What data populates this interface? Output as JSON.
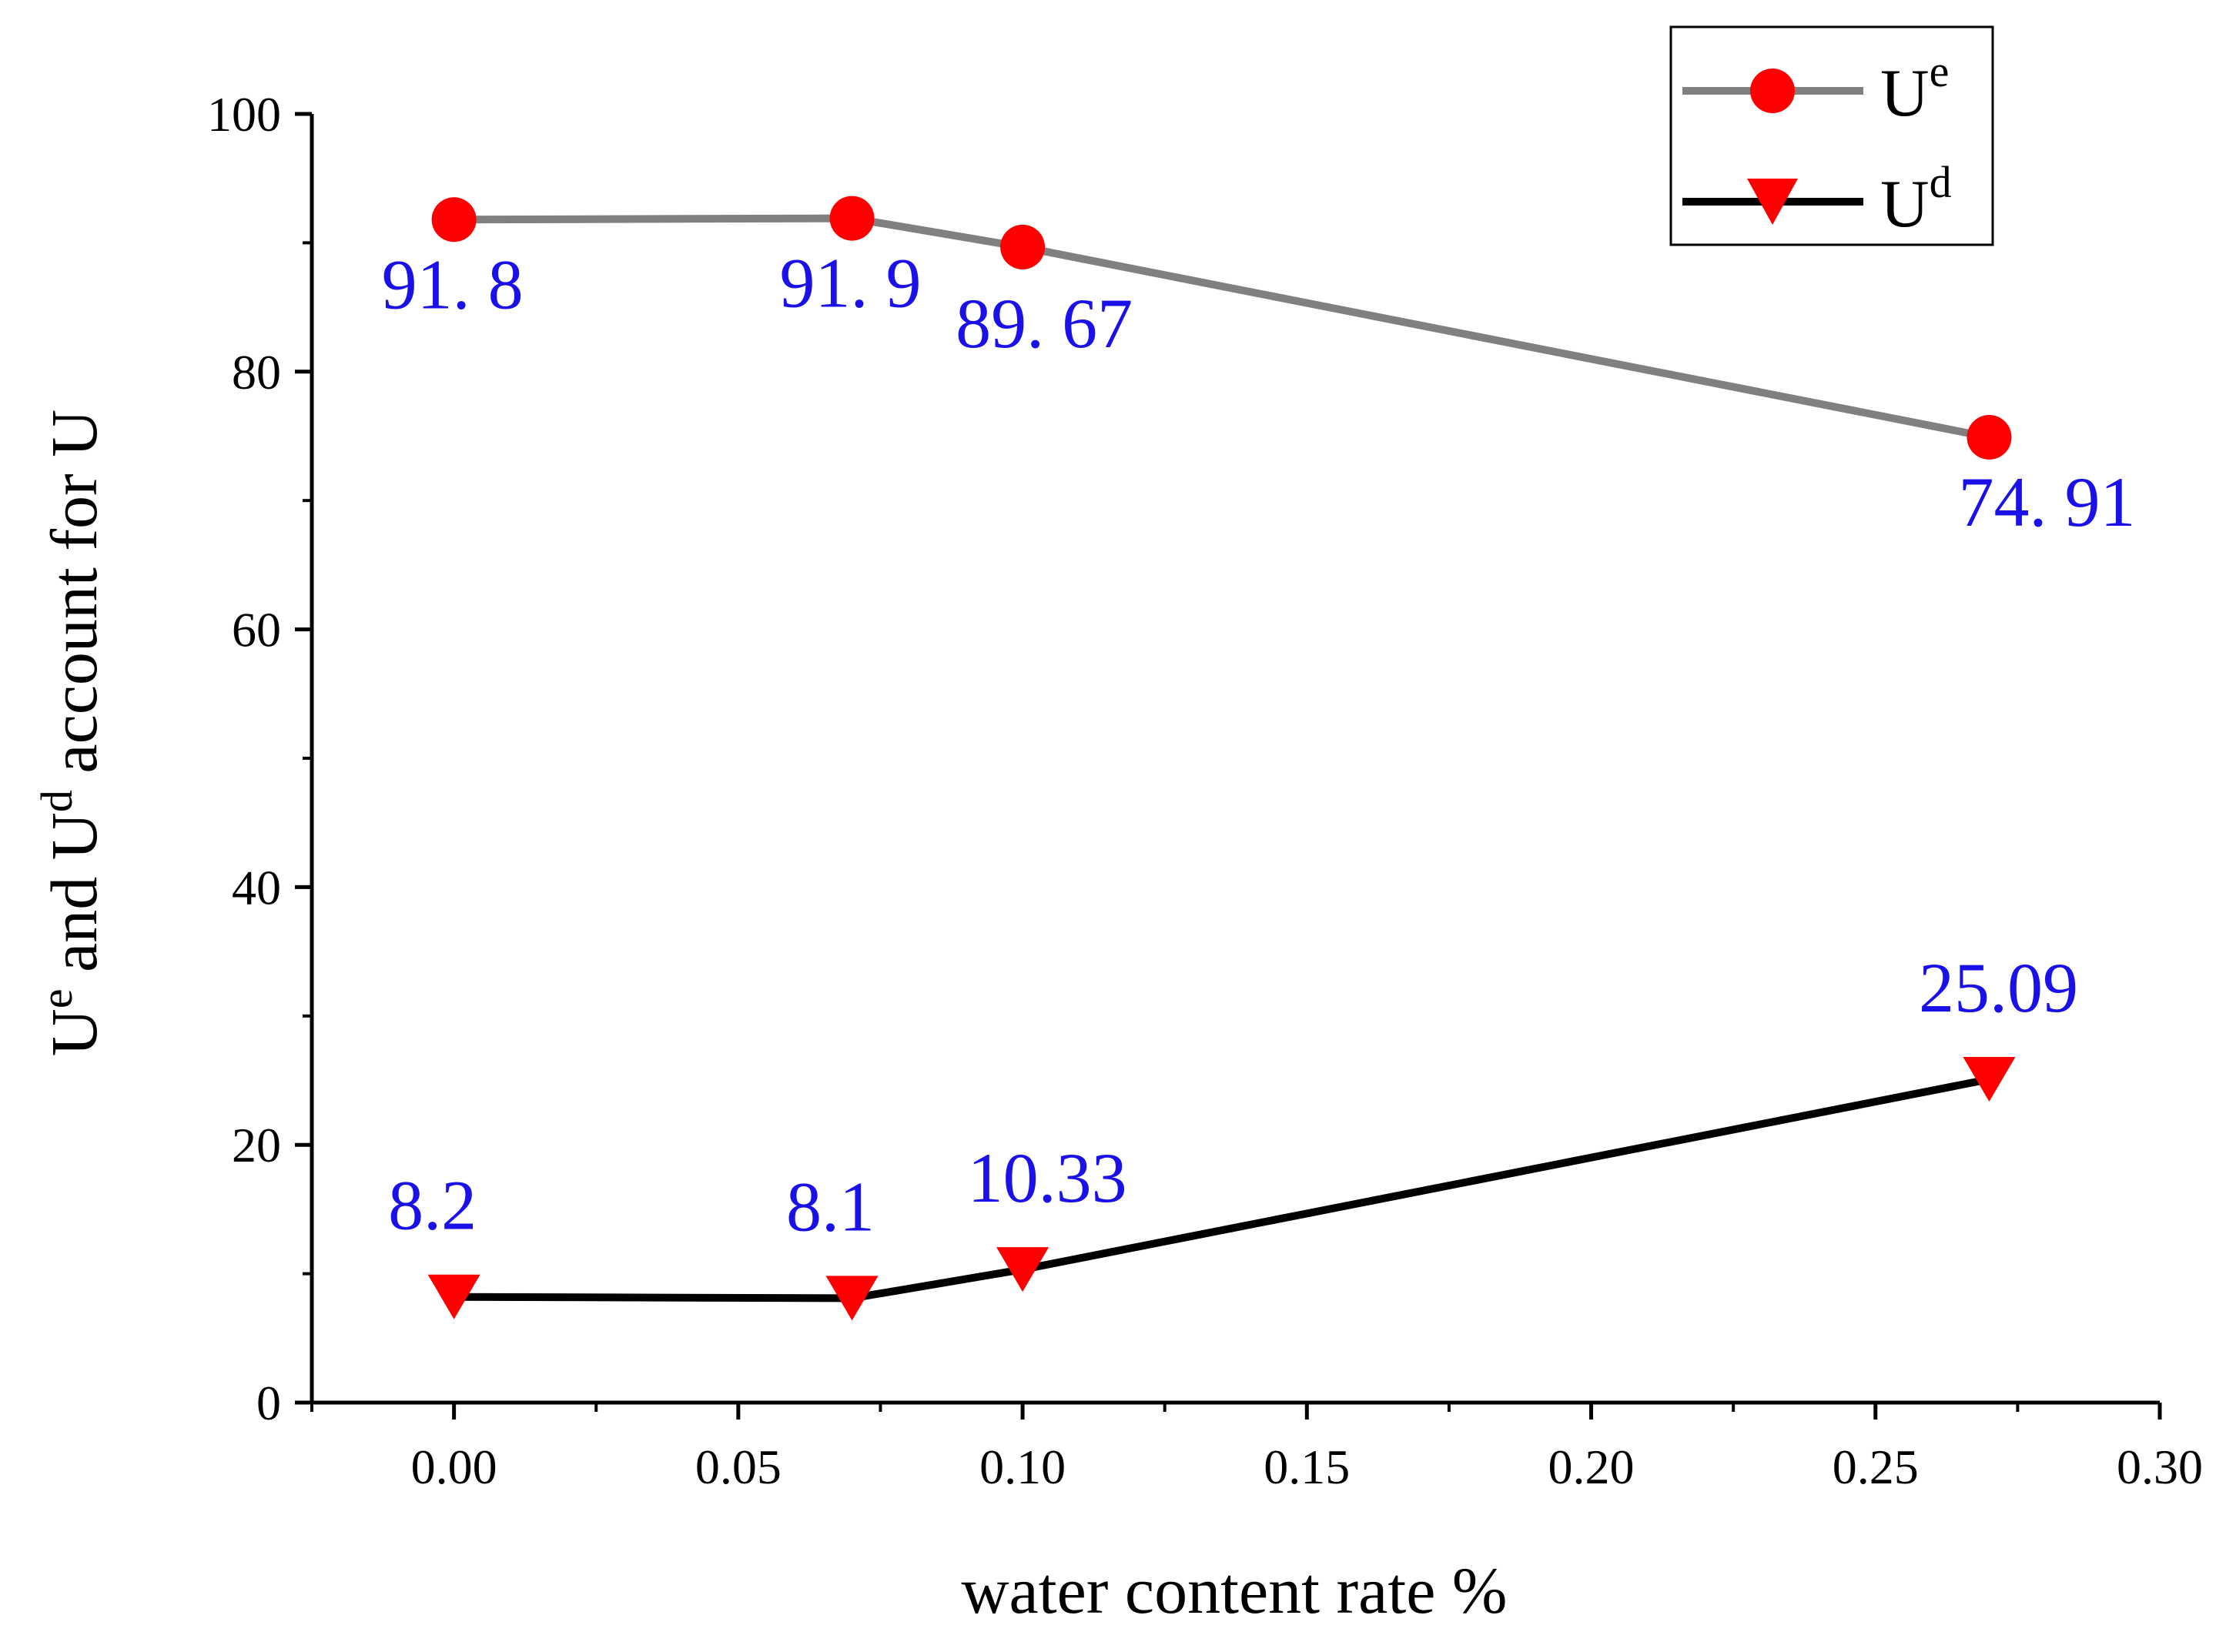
{
  "chart_data": {
    "type": "line",
    "x": [
      0.0,
      0.07,
      0.1,
      0.27
    ],
    "series": [
      {
        "name": "U",
        "name_sup": "e",
        "values": [
          91.8,
          91.9,
          89.67,
          74.91
        ],
        "data_labels": [
          "91. 8",
          "91. 9",
          "89. 67",
          "74. 91"
        ],
        "line_color": "#808080",
        "marker": "circle",
        "marker_color": "#ff0000"
      },
      {
        "name": "U",
        "name_sup": "d",
        "values": [
          8.2,
          8.1,
          10.33,
          25.09
        ],
        "data_labels": [
          "8.2",
          "8.1",
          "10.33",
          "25.09"
        ],
        "line_color": "#000000",
        "marker": "triangle-down",
        "marker_color": "#ff0000"
      }
    ],
    "xlabel": "water content rate %",
    "ylabel": {
      "part1": "U",
      "sup1": "e",
      "part2": " and U",
      "sup2": "d",
      "part3": " account for U"
    },
    "xlim": [
      -0.025,
      0.3
    ],
    "ylim": [
      0,
      100
    ],
    "x_ticks": [
      0.0,
      0.05,
      0.1,
      0.15,
      0.2,
      0.25,
      0.3
    ],
    "x_tick_labels": [
      "0.00",
      "0.05",
      "0.10",
      "0.15",
      "0.20",
      "0.25",
      "0.30"
    ],
    "y_ticks": [
      0,
      20,
      40,
      60,
      80,
      100
    ],
    "y_tick_labels": [
      "0",
      "20",
      "40",
      "60",
      "80",
      "100"
    ],
    "legend_position": "top-right",
    "label_color": "#1a10e8",
    "grid": false
  }
}
